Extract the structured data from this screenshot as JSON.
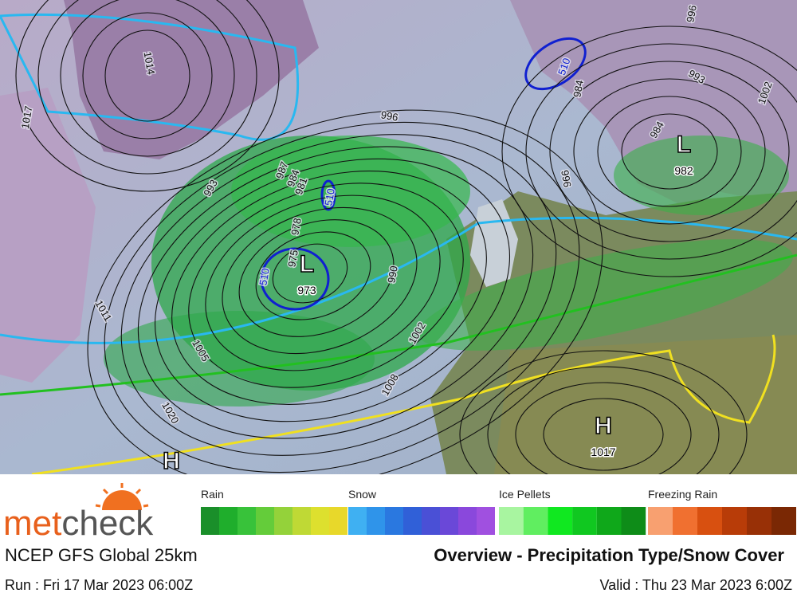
{
  "map": {
    "pressure_centers": [
      {
        "symbol": "L",
        "value": "973"
      },
      {
        "symbol": "L",
        "value": "982"
      },
      {
        "symbol": "H",
        "value": "1017"
      },
      {
        "symbol": "H"
      }
    ],
    "isobar_labels": [
      "1014",
      "1017",
      "996",
      "993",
      "987",
      "984",
      "981",
      "978",
      "975",
      "990",
      "1002",
      "1008",
      "1005",
      "1011",
      "1020",
      "984",
      "996",
      "993",
      "984",
      "1002",
      "996"
    ],
    "thickness_labels": [
      "510",
      "510",
      "510"
    ]
  },
  "legend": [
    {
      "name": "Rain",
      "colors": [
        "#1a8f2a",
        "#1fae2c",
        "#38c23a",
        "#64cc3a",
        "#94d23a",
        "#bfd935",
        "#dde02e",
        "#e8d82a"
      ]
    },
    {
      "name": "Snow",
      "colors": [
        "#3fb0f2",
        "#2f94ea",
        "#2a78e0",
        "#3060d8",
        "#4a50d6",
        "#6a48d8",
        "#8a48dc",
        "#a050e0"
      ]
    },
    {
      "name": "Ice Pellets",
      "colors": [
        "#a8f5a0",
        "#60ee60",
        "#10e820",
        "#10c820",
        "#0fa81a",
        "#0e8c18"
      ]
    },
    {
      "name": "Freezing Rain",
      "colors": [
        "#f8a070",
        "#f07030",
        "#d85010",
        "#b83c08",
        "#983006",
        "#7a2804"
      ]
    }
  ],
  "footer": {
    "brand": {
      "first": "met",
      "second": "check"
    },
    "model": "NCEP GFS Global 25km",
    "title": "Overview - Precipitation Type/Snow Cover",
    "run": "Run : Fri 17 Mar 2023 06:00Z",
    "valid": "Valid : Thu 23 Mar 2023 6:00Z"
  }
}
